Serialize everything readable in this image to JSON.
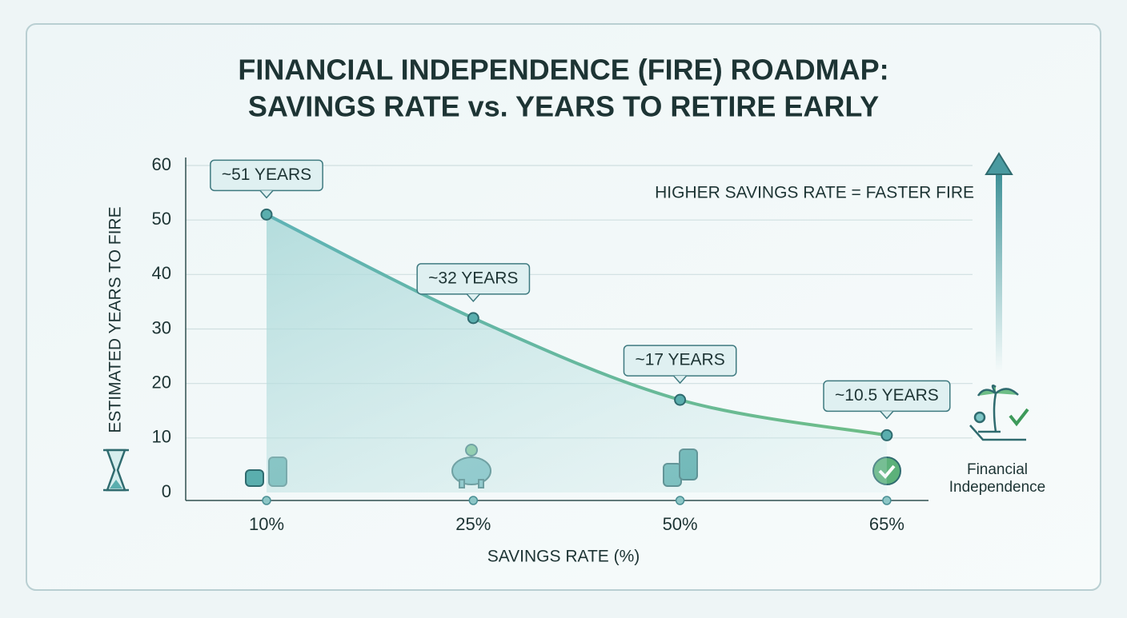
{
  "chart_data": {
    "type": "line",
    "title": [
      "FINANCIAL INDEPENDENCE (FIRE) ROADMAP:",
      "SAVINGS RATE vs. YEARS TO RETIRE EARLY"
    ],
    "x_label": "SAVINGS RATE (%)",
    "y_label": "ESTIMATED YEARS TO FIRE",
    "categories": [
      "10%",
      "25%",
      "50%",
      "65%"
    ],
    "values": [
      51,
      32,
      17,
      10.5
    ],
    "value_labels": [
      "~51 YEARS",
      "~32 YEARS",
      "~17 YEARS",
      "~10.5 YEARS"
    ],
    "color": "#5aaeae",
    "ylim": [
      0,
      60
    ],
    "yticks": [
      0,
      10,
      20,
      30,
      40,
      50,
      60
    ],
    "grid": true,
    "annotation": "HIGHER SAVINGS RATE = FASTER FIRE",
    "goal_label": [
      "Financial",
      "Independence"
    ]
  }
}
